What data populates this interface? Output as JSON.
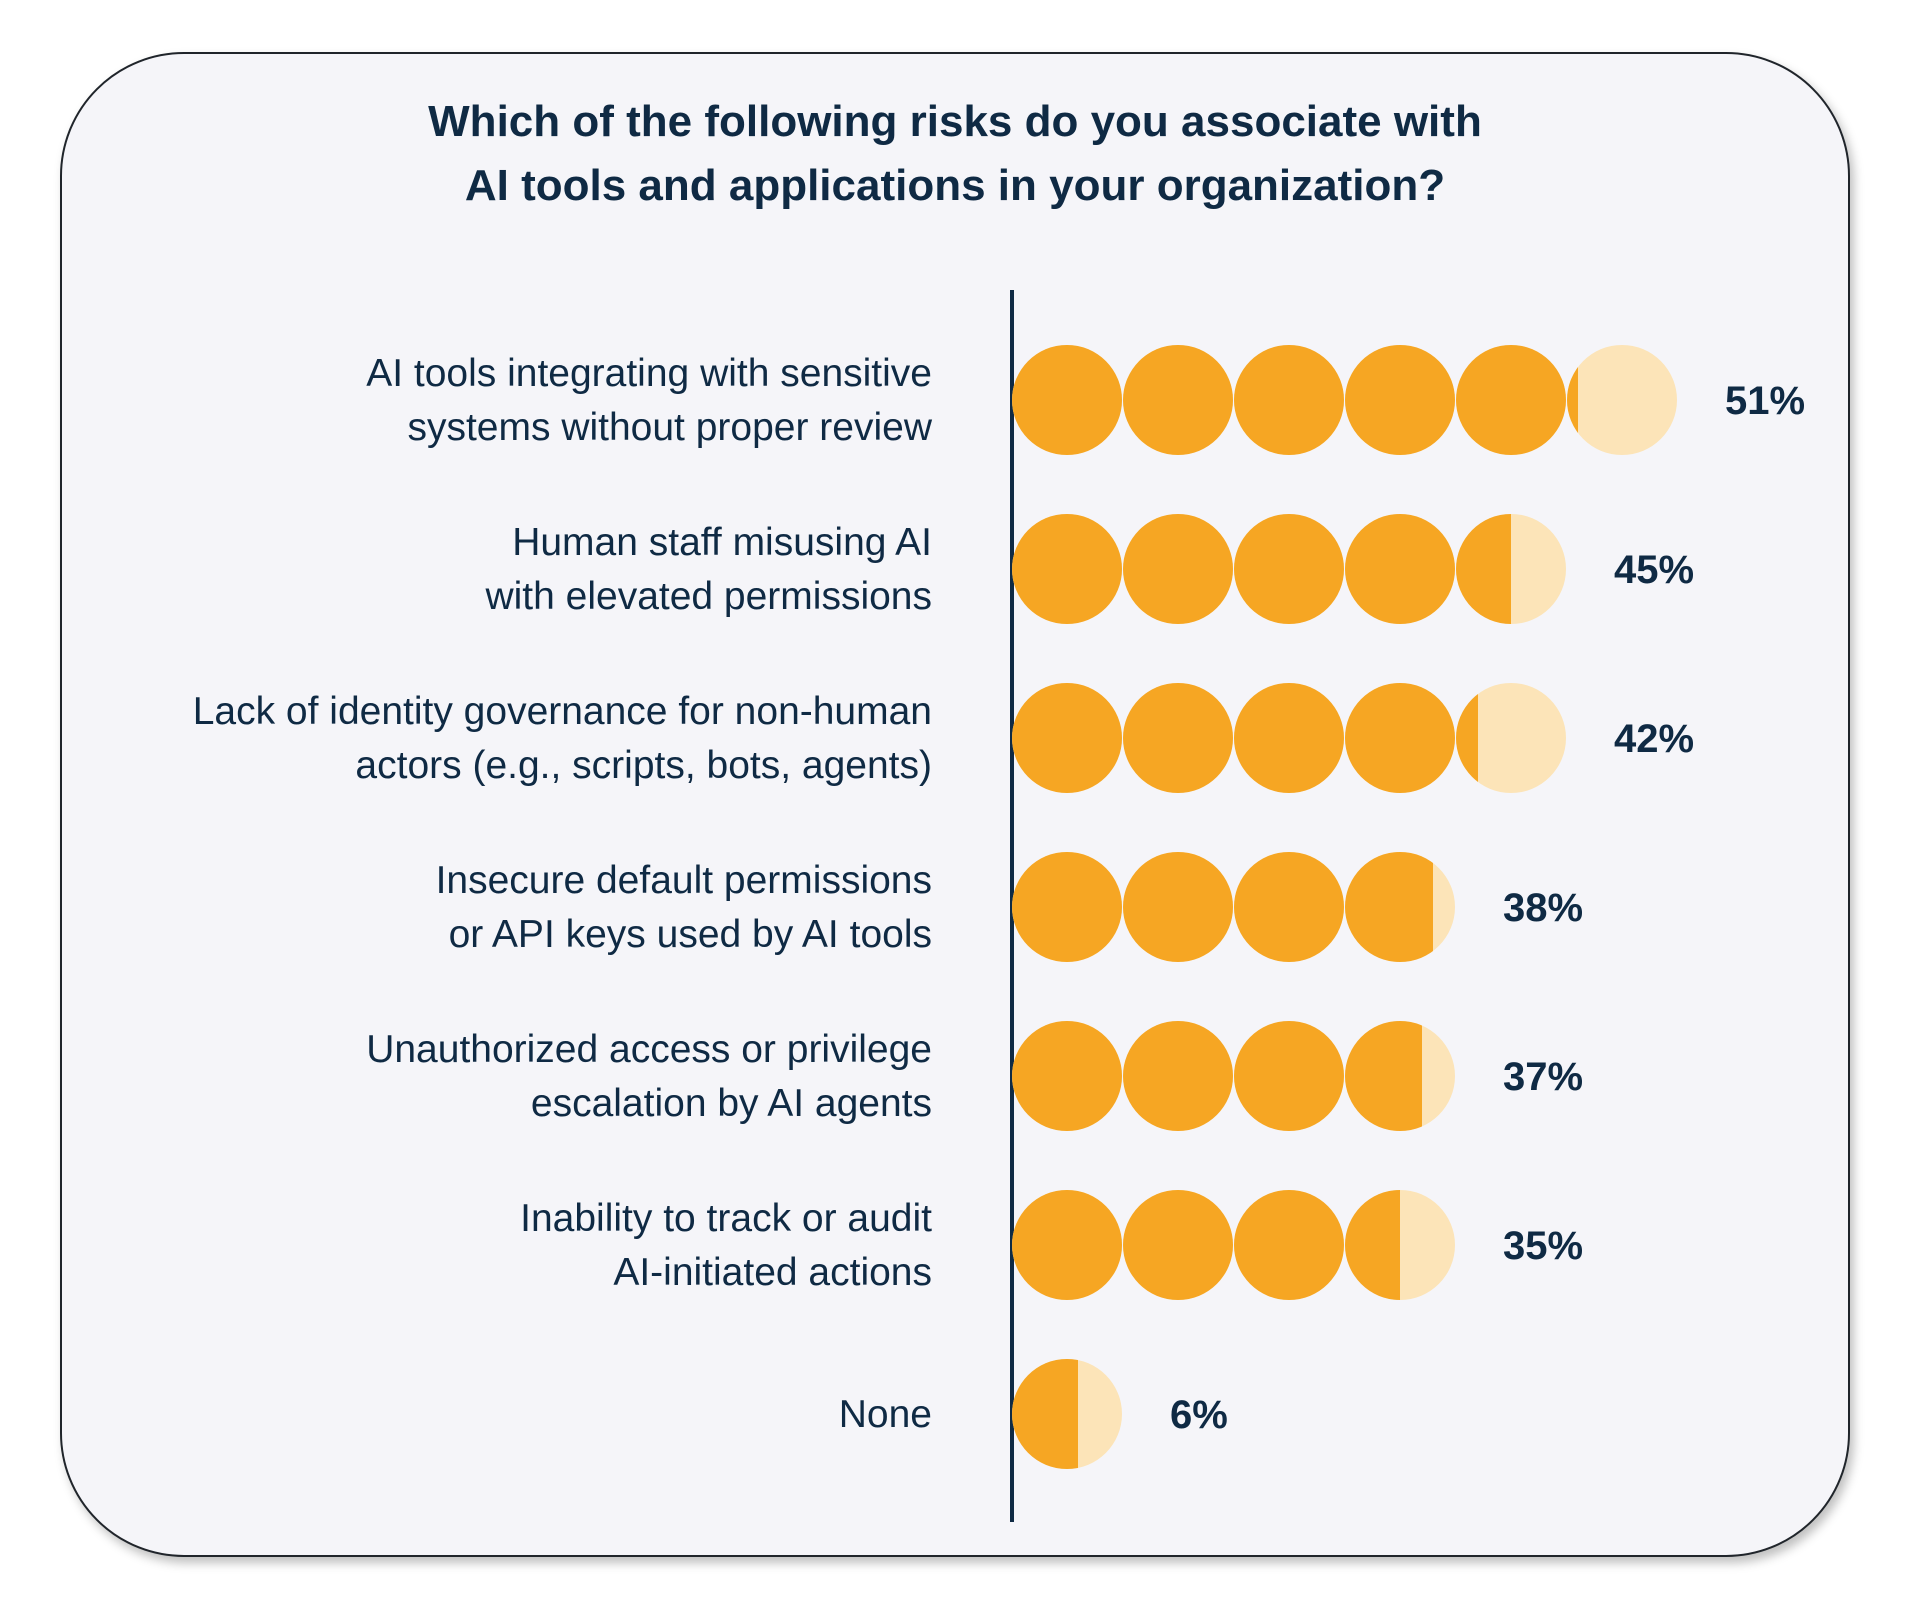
{
  "title_lines": [
    "Which of the following risks do you associate with",
    "AI tools and applications in your organization?"
  ],
  "colors": {
    "filled": "#f6a623",
    "unfilled": "#fce4b8",
    "axis": "#0f2a44",
    "text": "#0f2a44",
    "card": "#f5f5f9"
  },
  "chart_data": {
    "type": "bar",
    "title": "Which of the following risks do you associate with AI tools and applications in your organization?",
    "unit": "%",
    "dot_value": 10,
    "categories": [
      [
        "AI tools integrating with sensitive",
        "systems without proper review"
      ],
      [
        "Human staff misusing AI",
        "with elevated permissions"
      ],
      [
        "Lack of identity governance for non-human",
        "actors (e.g., scripts, bots, agents)"
      ],
      [
        "Insecure default permissions",
        "or API keys used by AI tools"
      ],
      [
        "Unauthorized access or privilege",
        "escalation by AI agents"
      ],
      [
        "Inability to track or audit",
        "AI-initiated actions"
      ],
      [
        "None"
      ]
    ],
    "values": [
      51,
      45,
      42,
      38,
      37,
      35,
      6
    ],
    "value_labels": [
      "51%",
      "45%",
      "42%",
      "38%",
      "37%",
      "35%",
      "6%"
    ]
  }
}
